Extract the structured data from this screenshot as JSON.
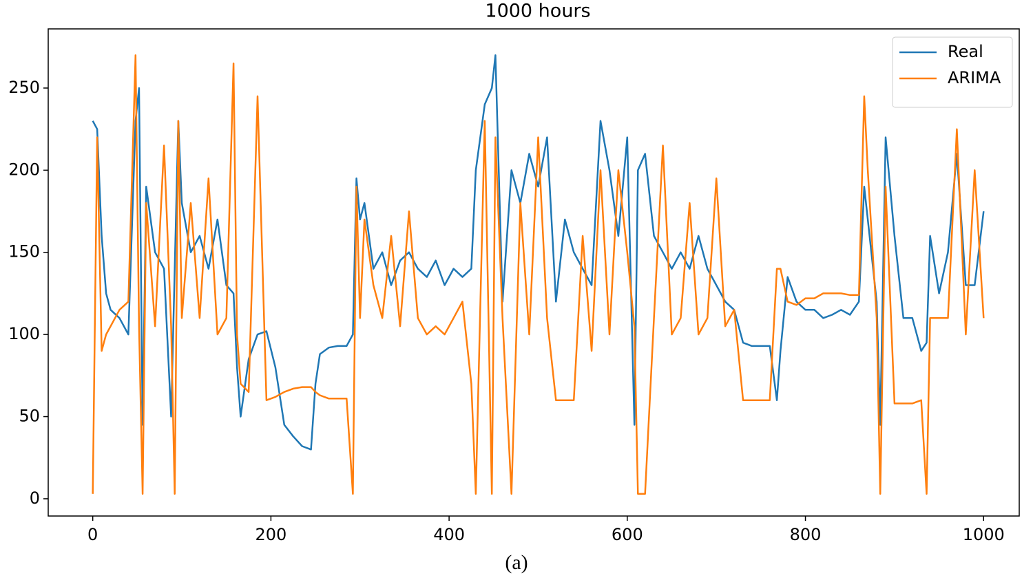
{
  "chart_data": {
    "type": "line",
    "title": "1000 hours",
    "caption": "(a)",
    "x": [
      0,
      5,
      10,
      15,
      20,
      30,
      40,
      48,
      52,
      56,
      60,
      70,
      80,
      88,
      92,
      96,
      100,
      110,
      120,
      130,
      140,
      150,
      158,
      162,
      166,
      175,
      185,
      195,
      205,
      215,
      225,
      235,
      245,
      250,
      255,
      265,
      275,
      285,
      292,
      296,
      300,
      305,
      315,
      325,
      335,
      345,
      355,
      365,
      375,
      385,
      395,
      405,
      415,
      425,
      430,
      440,
      448,
      452,
      460,
      470,
      480,
      490,
      500,
      510,
      520,
      530,
      540,
      550,
      560,
      570,
      580,
      590,
      600,
      608,
      612,
      620,
      630,
      640,
      650,
      660,
      670,
      680,
      690,
      700,
      710,
      720,
      730,
      740,
      750,
      760,
      768,
      772,
      780,
      790,
      800,
      810,
      820,
      830,
      840,
      850,
      860,
      866,
      870,
      880,
      884,
      890,
      900,
      910,
      920,
      930,
      936,
      940,
      950,
      960,
      970,
      980,
      990,
      1000
    ],
    "series": [
      {
        "name": "Real",
        "color": "#1f77b4",
        "values": [
          230,
          225,
          160,
          125,
          115,
          110,
          100,
          230,
          250,
          45,
          190,
          150,
          140,
          50,
          140,
          230,
          180,
          150,
          160,
          140,
          170,
          130,
          125,
          80,
          50,
          85,
          100,
          102,
          80,
          45,
          38,
          32,
          30,
          70,
          88,
          92,
          93,
          93,
          100,
          195,
          170,
          180,
          140,
          150,
          130,
          145,
          150,
          140,
          135,
          145,
          130,
          140,
          135,
          140,
          200,
          240,
          250,
          270,
          120,
          200,
          180,
          210,
          190,
          220,
          120,
          170,
          150,
          140,
          130,
          230,
          200,
          160,
          220,
          45,
          200,
          210,
          160,
          150,
          140,
          150,
          140,
          160,
          140,
          130,
          120,
          115,
          95,
          93,
          93,
          93,
          60,
          90,
          135,
          120,
          115,
          115,
          110,
          112,
          115,
          112,
          120,
          190,
          170,
          120,
          45,
          220,
          160,
          110,
          110,
          90,
          95,
          160,
          125,
          150,
          210,
          130,
          130,
          175
        ]
      },
      {
        "name": "ARIMA",
        "color": "#ff7f0e",
        "values": [
          3,
          220,
          90,
          100,
          105,
          115,
          120,
          270,
          105,
          3,
          180,
          105,
          215,
          105,
          3,
          230,
          110,
          180,
          110,
          195,
          100,
          110,
          265,
          100,
          70,
          65,
          245,
          60,
          62,
          65,
          67,
          68,
          68,
          65,
          63,
          61,
          61,
          61,
          3,
          190,
          110,
          170,
          130,
          110,
          160,
          105,
          175,
          110,
          100,
          105,
          100,
          110,
          120,
          70,
          3,
          230,
          3,
          220,
          110,
          3,
          180,
          100,
          220,
          110,
          60,
          60,
          60,
          160,
          90,
          200,
          100,
          200,
          150,
          105,
          3,
          3,
          110,
          215,
          100,
          110,
          180,
          100,
          110,
          195,
          105,
          115,
          60,
          60,
          60,
          60,
          140,
          140,
          120,
          118,
          122,
          122,
          125,
          125,
          125,
          124,
          124,
          245,
          200,
          110,
          3,
          190,
          58,
          58,
          58,
          60,
          3,
          110,
          110,
          110,
          225,
          100,
          200,
          110
        ]
      }
    ],
    "xlim": [
      -50,
      1040
    ],
    "ylim": [
      -10.5,
      286
    ],
    "xticks": [
      0,
      200,
      400,
      600,
      800,
      1000
    ],
    "yticks": [
      0,
      50,
      100,
      150,
      200,
      250
    ],
    "legend": "upper right",
    "grid": false
  }
}
